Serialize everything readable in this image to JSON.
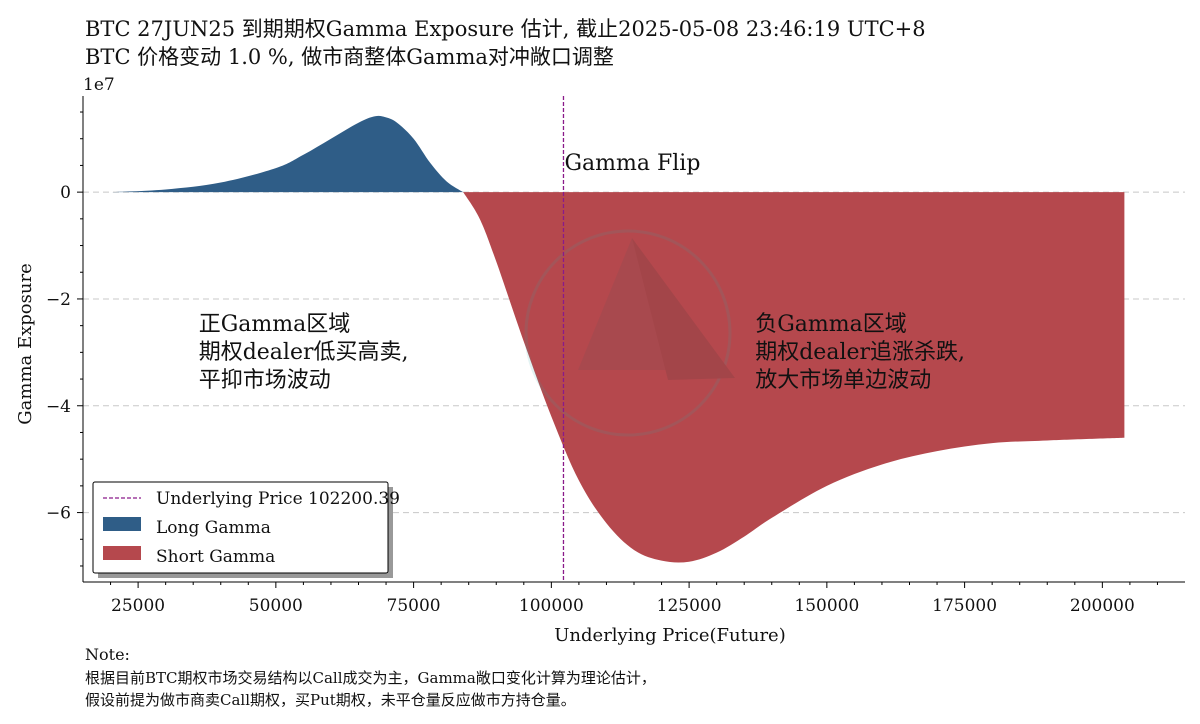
{
  "header": {
    "title_line1": "BTC 27JUN25 到期期权Gamma Exposure 估计, 截止2025-05-08 23:46:19 UTC+8",
    "title_line2": "BTC 价格变动 1.0 %, 做市商整体Gamma对冲敞口调整"
  },
  "note": {
    "label": "Note:",
    "line1": "根据目前BTC期权市场交易结构以Call成交为主，Gamma敞口变化计算为理论估计，",
    "line2": "假设前提为做市商卖Call期权，买Put期权，未平仓量反应做市方持仓量。"
  },
  "colors": {
    "long": "#2f5d87",
    "short": "#b5484d",
    "flip_line": "#8a1a8a",
    "grid": "#c8c8c8"
  },
  "chart_data": {
    "type": "area",
    "title": "BTC 27JUN25 到期期权Gamma Exposure 估计",
    "xlabel": "Underlying Price(Future)",
    "ylabel": "Gamma Exposure",
    "y_scale_label": "1e7",
    "xlim": [
      15000,
      215000
    ],
    "ylim": [
      -7.3,
      1.8
    ],
    "xticks": [
      25000,
      50000,
      75000,
      100000,
      125000,
      150000,
      175000,
      200000
    ],
    "xtick_labels": [
      "25000",
      "50000",
      "75000",
      "100000",
      "125000",
      "150000",
      "175000",
      "200000"
    ],
    "yticks": [
      0,
      -2,
      -4,
      -6
    ],
    "ytick_labels": [
      "0",
      "−2",
      "−4",
      "−6"
    ],
    "grid_y": true,
    "series": [
      {
        "name": "Long Gamma",
        "x": [
          20000,
          30000,
          40000,
          50000,
          55000,
          60000,
          65000,
          68000,
          70000,
          72000,
          75000,
          78000,
          81000,
          84000
        ],
        "values": [
          0,
          0.05,
          0.18,
          0.45,
          0.7,
          1.0,
          1.3,
          1.42,
          1.4,
          1.3,
          1.0,
          0.55,
          0.2,
          0
        ]
      },
      {
        "name": "Short Gamma",
        "x": [
          84000,
          87000,
          90000,
          95000,
          100000,
          105000,
          110000,
          115000,
          120000,
          125000,
          130000,
          135000,
          140000,
          150000,
          160000,
          170000,
          180000,
          190000,
          204000
        ],
        "values": [
          0,
          -0.5,
          -1.3,
          -2.8,
          -4.2,
          -5.4,
          -6.2,
          -6.7,
          -6.9,
          -6.92,
          -6.75,
          -6.45,
          -6.1,
          -5.5,
          -5.1,
          -4.85,
          -4.7,
          -4.65,
          -4.6
        ]
      }
    ],
    "underlying_price": 102200.39,
    "flip_label": "Gamma Flip",
    "legend": {
      "position": "lower-left",
      "entries": [
        "Underlying Price 102200.39",
        "Long Gamma",
        "Short Gamma"
      ]
    },
    "annotations": [
      {
        "id": "positive",
        "x": 36000,
        "y": -2.6,
        "lines": [
          "正Gamma区域",
          "期权dealer低买高卖,",
          "平抑市场波动"
        ]
      },
      {
        "id": "negative",
        "x": 137000,
        "y": -2.6,
        "lines": [
          "负Gamma区域",
          "期权dealer追涨杀跌,",
          "放大市场单边波动"
        ]
      }
    ]
  }
}
